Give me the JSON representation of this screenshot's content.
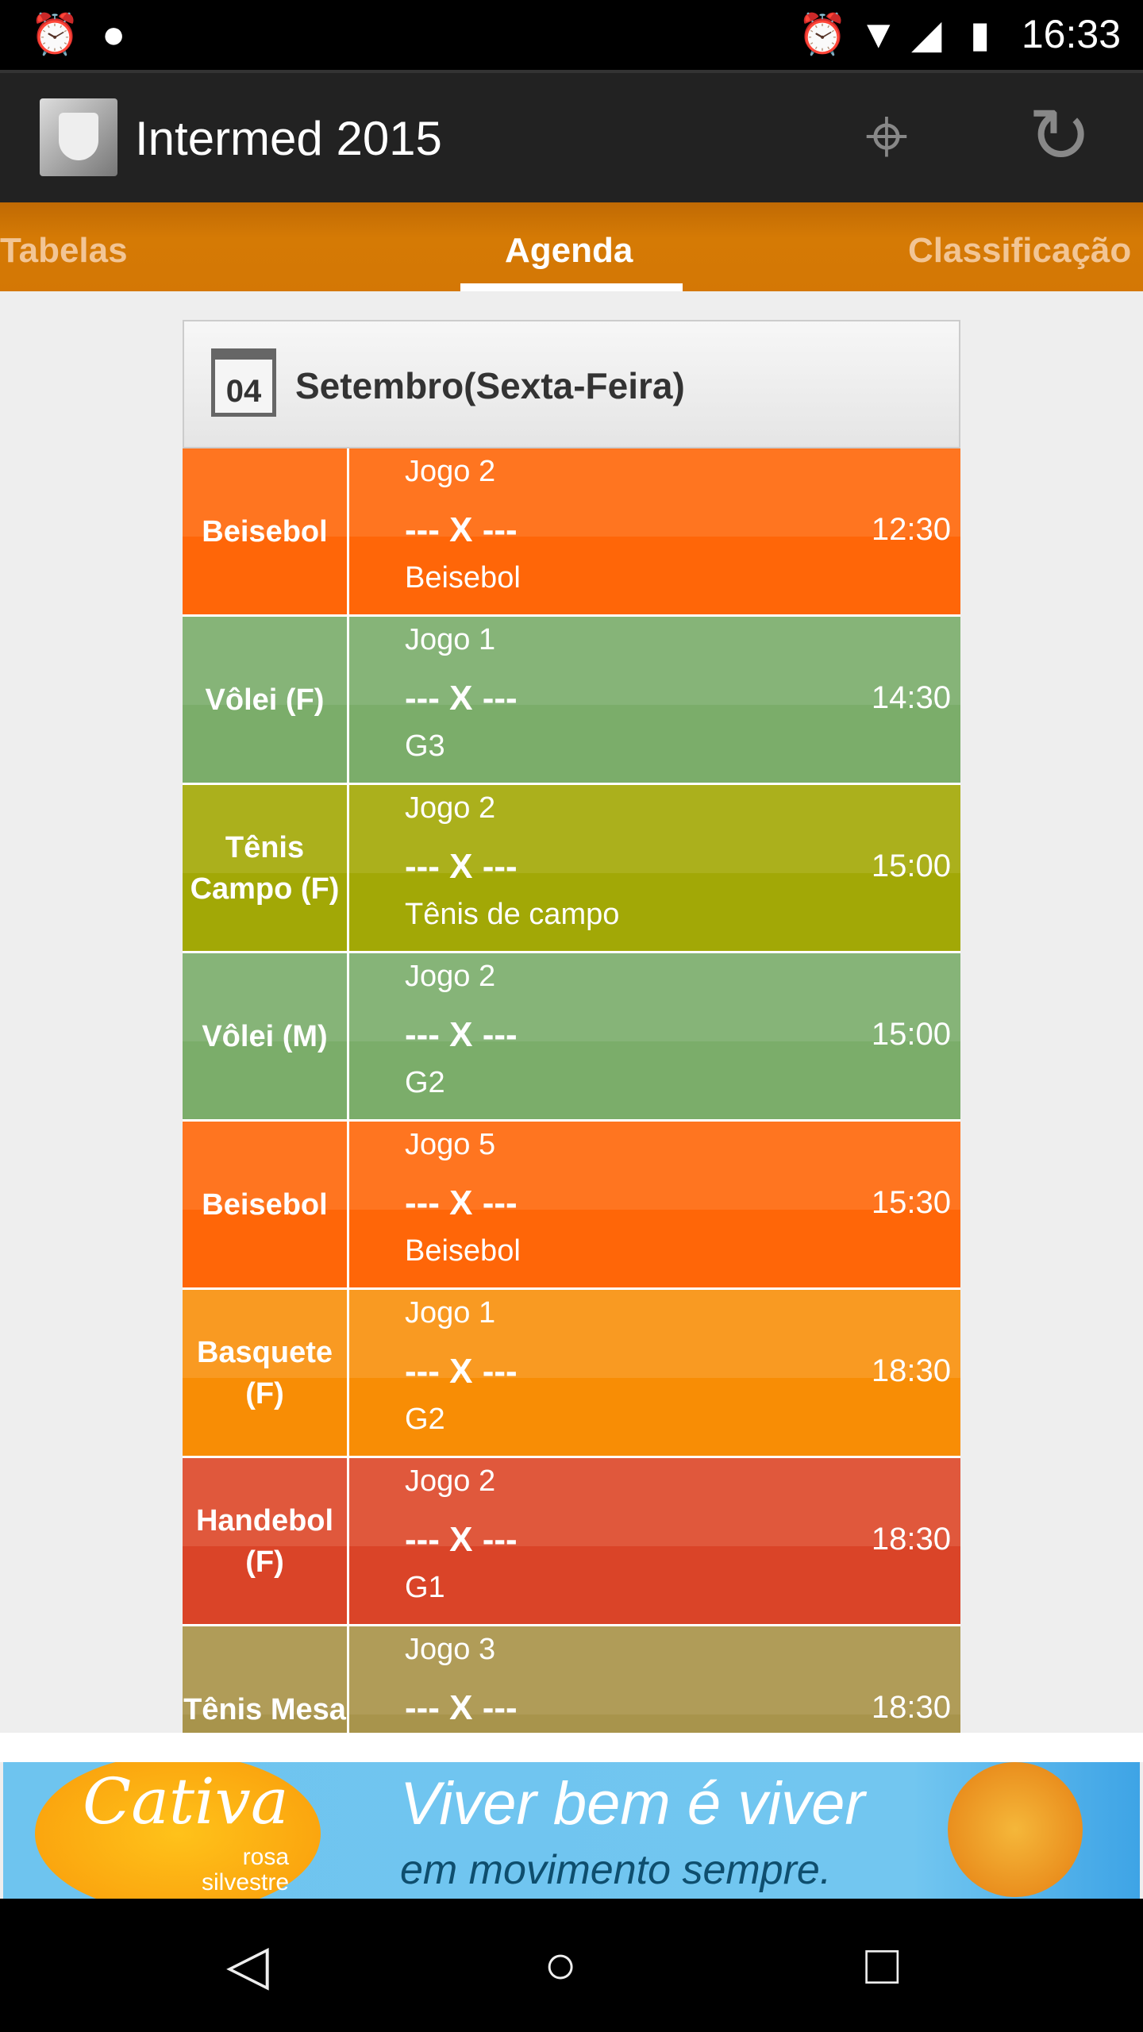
{
  "status_bar": {
    "time": "16:33",
    "icons": [
      "alarm-icon",
      "android-debug-icon",
      "alarm-icon",
      "wifi-icon",
      "signal-icon",
      "battery-charging-icon"
    ]
  },
  "app_bar": {
    "title": "Intermed 2015",
    "actions": [
      "map-pin-icon",
      "refresh-icon"
    ]
  },
  "tabs": [
    {
      "label": "Tabelas"
    },
    {
      "label": "Agenda",
      "active": true
    },
    {
      "label": "Classificação"
    }
  ],
  "day_header": {
    "day": "04",
    "title": "Setembro(Sexta-Feira)"
  },
  "games": [
    {
      "sport": "Beisebol",
      "game": "Jogo 2",
      "matchup": "--- X ---",
      "group": "Beisebol",
      "time": "12:30",
      "color_top": "#ff7520",
      "color_bottom": "#ff6608"
    },
    {
      "sport": "Vôlei (F)",
      "game": "Jogo 1",
      "matchup": "--- X ---",
      "group": "G3",
      "time": "14:30",
      "color_top": "#86b478",
      "color_bottom": "#7bad6a"
    },
    {
      "sport": "Tênis Campo (F)",
      "game": "Jogo 2",
      "matchup": "--- X ---",
      "group": "Tênis de campo",
      "time": "15:00",
      "color_top": "#abb01c",
      "color_bottom": "#a2a806"
    },
    {
      "sport": "Vôlei (M)",
      "game": "Jogo 2",
      "matchup": "--- X ---",
      "group": "G2",
      "time": "15:00",
      "color_top": "#86b478",
      "color_bottom": "#7bad6a"
    },
    {
      "sport": "Beisebol",
      "game": "Jogo 5",
      "matchup": "--- X ---",
      "group": "Beisebol",
      "time": "15:30",
      "color_top": "#ff7520",
      "color_bottom": "#ff6608"
    },
    {
      "sport": "Basquete (F)",
      "game": "Jogo 1",
      "matchup": "--- X ---",
      "group": "G2",
      "time": "18:30",
      "color_top": "#f99a22",
      "color_bottom": "#f88d05"
    },
    {
      "sport": "Handebol (F)",
      "game": "Jogo 2",
      "matchup": "--- X ---",
      "group": "G1",
      "time": "18:30",
      "color_top": "#e0583c",
      "color_bottom": "#da4428"
    },
    {
      "sport": "Tênis Mesa",
      "game": "Jogo 3",
      "matchup": "--- X ---",
      "group": "",
      "time": "18:30",
      "color_top": "#b09c58",
      "color_bottom": "#a8944c"
    }
  ],
  "ad": {
    "brand": "Cativa",
    "sub_line1": "rosa",
    "sub_line2": "silvestre",
    "tagline1": "Viver bem é viver",
    "tagline2": "em movimento sempre."
  },
  "nav_bar": [
    "back-icon",
    "home-icon",
    "recents-icon"
  ]
}
